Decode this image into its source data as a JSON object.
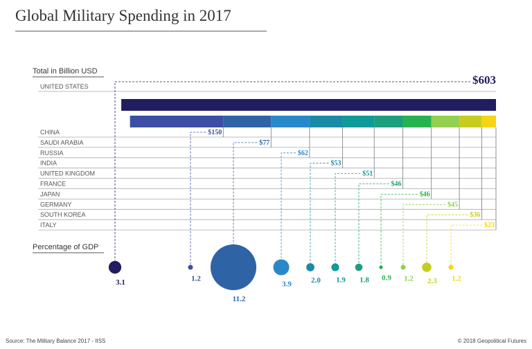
{
  "title": "Global Military Spending in 2017",
  "source": "Source: The Military Balance 2017 - IISS",
  "credit": "© 2018 Geopolitical Futures",
  "chart_data": [
    {
      "type": "bar",
      "title": "Total in Billion USD",
      "categories": [
        "UNITED STATES",
        "CHINA",
        "SAUDI ARABIA",
        "RUSSIA",
        "INDIA",
        "UNITED KINGDOM",
        "FRANCE",
        "JAPAN",
        "GERMANY",
        "SOUTH KOREA",
        "ITALY"
      ],
      "values": [
        603,
        150,
        77,
        62,
        53,
        51,
        46,
        46,
        45,
        36,
        23
      ],
      "value_labels": [
        "$603",
        "$150",
        "$77",
        "$62",
        "$53",
        "$51",
        "$46",
        "$46",
        "$45",
        "$36",
        "$23"
      ],
      "colors": [
        "#221d5f",
        "#3b4ea3",
        "#2e63a6",
        "#2a88c9",
        "#1b8aa7",
        "#0f9a98",
        "#1e9e7d",
        "#28b24f",
        "#93d04f",
        "#c7cd20",
        "#f6d415"
      ]
    },
    {
      "type": "bubble",
      "title": "Percentage of GDP",
      "values": [
        3.1,
        1.2,
        11.2,
        3.9,
        2.0,
        1.9,
        1.8,
        0.9,
        1.2,
        2.3,
        1.2
      ],
      "value_labels": [
        "3.1",
        "1.2",
        "11.2",
        "3.9",
        "2.0",
        "1.9",
        "1.8",
        "0.9",
        "1.2",
        "2.3",
        "1.2"
      ],
      "colors": [
        "#221d5f",
        "#3b4ea3",
        "#2e63a6",
        "#2a88c9",
        "#1b8aa7",
        "#0f9a98",
        "#1e9e7d",
        "#28b24f",
        "#93d04f",
        "#c7cd20",
        "#f6d415"
      ]
    }
  ]
}
